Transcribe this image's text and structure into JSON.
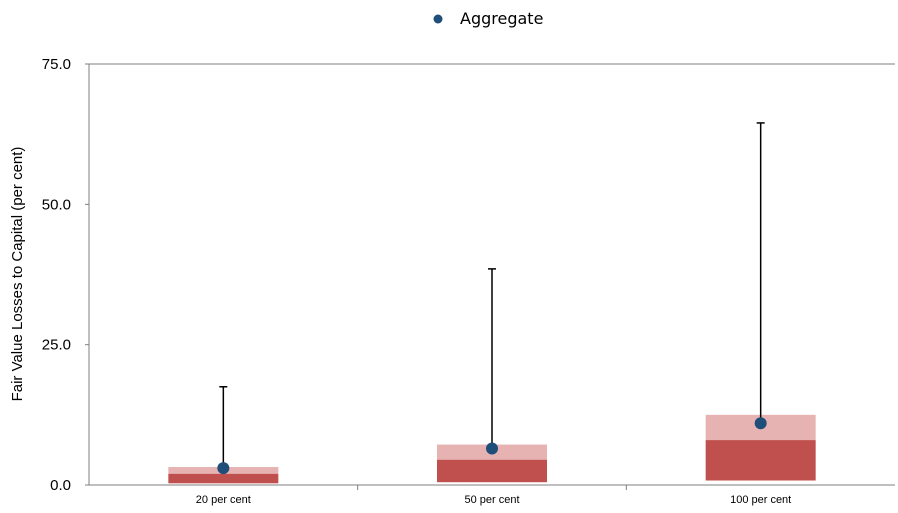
{
  "chart_data": {
    "type": "box",
    "categories": [
      "20 per cent",
      "50 per cent",
      "100 per cent"
    ],
    "ylabel": "Fair Value Losses to Capital (per cent)",
    "ylim": [
      0,
      75
    ],
    "yticks": [
      "0.0",
      "25.0",
      "50.0",
      "75.0"
    ],
    "grid": false,
    "legend": {
      "position": "top-center",
      "entries": [
        "Aggregate"
      ]
    },
    "boxes": [
      {
        "category": "20 per cent",
        "low": 0.3,
        "mid": 2.0,
        "high": 3.2,
        "whisker_high": 17.5,
        "aggregate": 3.0
      },
      {
        "category": "50 per cent",
        "low": 0.5,
        "mid": 4.5,
        "high": 7.2,
        "whisker_high": 38.5,
        "aggregate": 6.5
      },
      {
        "category": "100 per cent",
        "low": 0.8,
        "mid": 8.0,
        "high": 12.5,
        "whisker_high": 64.5,
        "aggregate": 11.0
      }
    ],
    "colors": {
      "lower_box": "#c0504d",
      "upper_box": "#e6b3b2",
      "aggregate": "#1f4e79",
      "whisker": "#000000"
    }
  }
}
